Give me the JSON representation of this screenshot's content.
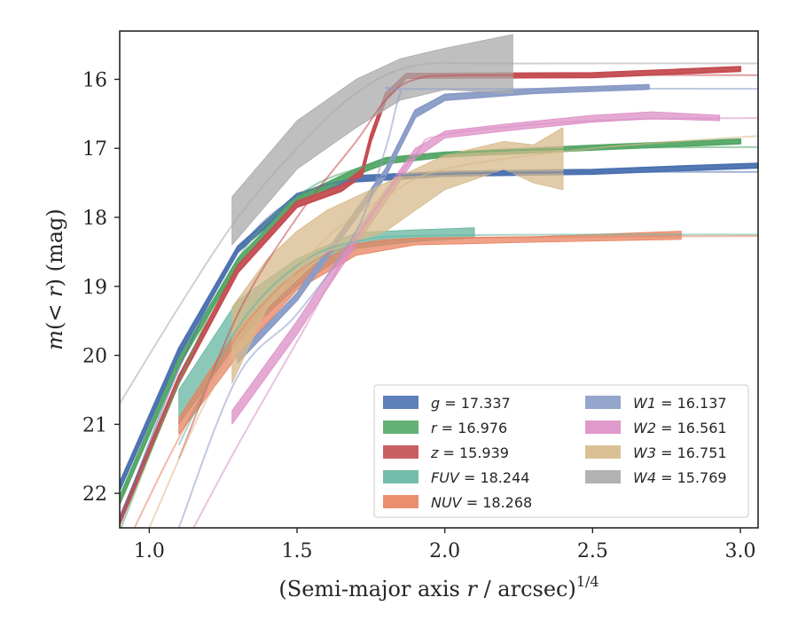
{
  "chart_data": {
    "type": "line",
    "xlabel_main": "(Semi-major axis ",
    "xlabel_var": "r",
    "xlabel_tail": " / arcsec)",
    "xlabel_exp": "1/4",
    "ylabel_main": "m",
    "ylabel_args": "(< ",
    "ylabel_var": "r",
    "ylabel_tail": ") (mag)",
    "xlim": [
      0.9,
      3.06
    ],
    "ylim": [
      22.5,
      15.3
    ],
    "y_inverted": true,
    "xticks": [
      "1.0",
      "1.5",
      "2.0",
      "2.5",
      "3.0"
    ],
    "xtick_values": [
      1.0,
      1.5,
      2.0,
      2.5,
      3.0
    ],
    "yticks": [
      "16",
      "17",
      "18",
      "19",
      "20",
      "21",
      "22"
    ],
    "ytick_values": [
      16,
      17,
      18,
      19,
      20,
      21,
      22
    ],
    "grid": false,
    "legend_placement": "lower-right",
    "series": [
      {
        "name": "g",
        "value": "17.337",
        "color": "#4c72b0",
        "model": [
          [
            0.9,
            22.4
          ],
          [
            1.1,
            20.2
          ],
          [
            1.3,
            18.5
          ],
          [
            1.5,
            17.7
          ],
          [
            1.7,
            17.45
          ],
          [
            2.0,
            17.37
          ],
          [
            2.5,
            17.345
          ],
          [
            3.06,
            17.34
          ]
        ],
        "band": [
          [
            0.9,
            21.95,
            21.85
          ],
          [
            1.1,
            20.0,
            19.9
          ],
          [
            1.3,
            18.5,
            18.42
          ],
          [
            1.5,
            17.74,
            17.66
          ],
          [
            1.7,
            17.48,
            17.4
          ],
          [
            2.0,
            17.4,
            17.34
          ],
          [
            2.5,
            17.37,
            17.31
          ],
          [
            2.8,
            17.32,
            17.26
          ],
          [
            3.06,
            17.28,
            17.22
          ]
        ]
      },
      {
        "name": "r",
        "value": "16.976",
        "color": "#55a868",
        "model": [
          [
            0.9,
            22.55
          ],
          [
            1.1,
            20.4
          ],
          [
            1.3,
            18.6
          ],
          [
            1.5,
            17.7
          ],
          [
            1.7,
            17.3
          ],
          [
            2.0,
            17.08
          ],
          [
            2.5,
            17.0
          ],
          [
            3.06,
            16.98
          ]
        ],
        "band": [
          [
            0.9,
            22.15,
            22.05
          ],
          [
            1.1,
            20.15,
            20.05
          ],
          [
            1.3,
            18.68,
            18.6
          ],
          [
            1.5,
            17.78,
            17.7
          ],
          [
            1.7,
            17.38,
            17.3
          ],
          [
            1.8,
            17.22,
            17.14
          ],
          [
            2.0,
            17.12,
            17.06
          ],
          [
            2.5,
            17.02,
            16.96
          ],
          [
            3.0,
            16.93,
            16.87
          ]
        ]
      },
      {
        "name": "z",
        "value": "15.939",
        "color": "#c44e52",
        "model": [
          [
            1.1,
            21.5
          ],
          [
            1.3,
            19.4
          ],
          [
            1.5,
            18.0
          ],
          [
            1.7,
            16.9
          ],
          [
            1.8,
            16.3
          ],
          [
            1.9,
            16.0
          ],
          [
            2.1,
            15.94
          ],
          [
            3.06,
            15.94
          ]
        ],
        "band": [
          [
            0.9,
            22.45,
            22.35
          ],
          [
            1.1,
            20.4,
            20.3
          ],
          [
            1.3,
            18.8,
            18.7
          ],
          [
            1.5,
            17.85,
            17.77
          ],
          [
            1.65,
            17.62,
            17.54
          ],
          [
            1.72,
            17.4,
            17.3
          ],
          [
            1.75,
            16.9,
            16.8
          ],
          [
            1.8,
            16.3,
            16.2
          ],
          [
            1.87,
            15.98,
            15.92
          ],
          [
            2.5,
            15.97,
            15.91
          ],
          [
            3.0,
            15.88,
            15.82
          ]
        ]
      },
      {
        "name": "FUV",
        "value": "18.244",
        "color": "#64b5a0",
        "model": [
          [
            1.1,
            21.3
          ],
          [
            1.3,
            19.6
          ],
          [
            1.5,
            18.7
          ],
          [
            1.7,
            18.35
          ],
          [
            2.0,
            18.26
          ],
          [
            3.06,
            18.25
          ]
        ],
        "band": [
          [
            1.1,
            20.5,
            21.0
          ],
          [
            1.3,
            19.2,
            19.8
          ],
          [
            1.5,
            18.6,
            19.0
          ],
          [
            1.7,
            18.22,
            18.45
          ],
          [
            1.9,
            18.18,
            18.35
          ],
          [
            2.1,
            18.15,
            18.3
          ]
        ]
      },
      {
        "name": "NUV",
        "value": "18.268",
        "color": "#e8825f",
        "model": [
          [
            0.95,
            22.5
          ],
          [
            1.1,
            21.2
          ],
          [
            1.3,
            19.7
          ],
          [
            1.5,
            18.8
          ],
          [
            1.7,
            18.4
          ],
          [
            2.0,
            18.3
          ],
          [
            3.06,
            18.27
          ]
        ],
        "band": [
          [
            1.1,
            20.9,
            21.15
          ],
          [
            1.3,
            19.6,
            20.0
          ],
          [
            1.5,
            18.8,
            19.05
          ],
          [
            1.7,
            18.38,
            18.55
          ],
          [
            1.9,
            18.3,
            18.4
          ],
          [
            2.3,
            18.28,
            18.36
          ],
          [
            2.8,
            18.2,
            18.32
          ]
        ]
      },
      {
        "name": "W1",
        "value": "16.137",
        "color": "#8a9cc6",
        "model": [
          [
            1.1,
            22.5
          ],
          [
            1.3,
            20.3
          ],
          [
            1.5,
            19.4
          ],
          [
            1.7,
            18.2
          ],
          [
            1.8,
            17.0
          ],
          [
            1.85,
            16.2
          ],
          [
            1.9,
            16.14
          ],
          [
            3.06,
            16.137
          ]
        ],
        "band": [
          [
            1.3,
            20.1,
            20.0
          ],
          [
            1.5,
            19.2,
            19.1
          ],
          [
            1.7,
            18.0,
            17.9
          ],
          [
            1.8,
            17.4,
            17.3
          ],
          [
            1.9,
            16.55,
            16.45
          ],
          [
            2.0,
            16.3,
            16.22
          ],
          [
            2.3,
            16.2,
            16.14
          ],
          [
            2.69,
            16.14,
            16.08
          ]
        ]
      },
      {
        "name": "W2",
        "value": "16.561",
        "color": "#dc8ec5",
        "model": [
          [
            1.15,
            22.5
          ],
          [
            1.3,
            21.3
          ],
          [
            1.5,
            19.8
          ],
          [
            1.7,
            18.3
          ],
          [
            1.9,
            17.1
          ],
          [
            2.0,
            16.8
          ],
          [
            2.5,
            16.6
          ],
          [
            3.06,
            16.56
          ]
        ],
        "band": [
          [
            1.28,
            20.8,
            21.0
          ],
          [
            1.5,
            19.5,
            19.7
          ],
          [
            1.7,
            18.2,
            18.4
          ],
          [
            1.9,
            17.0,
            17.15
          ],
          [
            2.0,
            16.75,
            16.85
          ],
          [
            2.2,
            16.65,
            16.75
          ],
          [
            2.5,
            16.52,
            16.62
          ],
          [
            2.7,
            16.47,
            16.57
          ],
          [
            2.93,
            16.52,
            16.6
          ]
        ]
      },
      {
        "name": "W3",
        "value": "16.751",
        "color": "#d7b98b",
        "model": [
          [
            1.0,
            22.5
          ],
          [
            1.2,
            20.6
          ],
          [
            1.4,
            19.3
          ],
          [
            1.6,
            18.3
          ],
          [
            1.8,
            17.7
          ],
          [
            2.0,
            17.3
          ],
          [
            2.5,
            17.0
          ],
          [
            3.06,
            16.82
          ]
        ],
        "band": [
          [
            1.28,
            19.3,
            20.4
          ],
          [
            1.4,
            18.6,
            19.3
          ],
          [
            1.5,
            18.2,
            18.9
          ],
          [
            1.6,
            17.9,
            18.5
          ],
          [
            1.8,
            17.5,
            18.2
          ],
          [
            1.9,
            17.3,
            17.9
          ],
          [
            2.0,
            17.1,
            17.6
          ],
          [
            2.2,
            16.9,
            17.3
          ],
          [
            2.3,
            16.95,
            17.5
          ],
          [
            2.4,
            16.7,
            17.6
          ]
        ]
      },
      {
        "name": "W4",
        "value": "15.769",
        "color": "#aaaaaa",
        "model": [
          [
            0.9,
            20.7
          ],
          [
            1.1,
            19.3
          ],
          [
            1.3,
            18.0
          ],
          [
            1.5,
            17.0
          ],
          [
            1.7,
            16.2
          ],
          [
            1.9,
            15.8
          ],
          [
            2.2,
            15.77
          ],
          [
            3.06,
            15.769
          ]
        ],
        "band": [
          [
            1.28,
            17.7,
            18.4
          ],
          [
            1.4,
            17.1,
            17.8
          ],
          [
            1.5,
            16.6,
            17.3
          ],
          [
            1.7,
            16.0,
            16.7
          ],
          [
            1.85,
            15.7,
            16.3
          ],
          [
            2.0,
            15.55,
            16.15
          ],
          [
            2.23,
            15.35,
            16.2
          ]
        ]
      }
    ]
  }
}
